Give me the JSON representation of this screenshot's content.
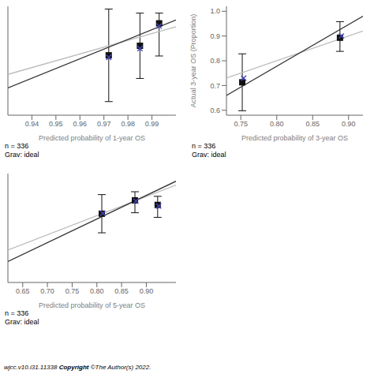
{
  "chart_data": [
    {
      "type": "scatter",
      "xlabel": "Predicted probability of 1-year OS",
      "xlim": [
        0.93,
        1.0
      ],
      "ylim": [
        0.87,
        1.03
      ],
      "xticks": [
        0.94,
        0.95,
        0.96,
        0.97,
        0.98,
        0.99
      ],
      "tick_labels": "x",
      "grid": false,
      "annotations": [
        "n = 336\nGrav: ideal"
      ],
      "series": [
        {
          "type": "line",
          "color": "#bbbbbb",
          "x": [
            0.93,
            1.0
          ],
          "values": [
            0.93,
            1.0
          ]
        },
        {
          "type": "line",
          "color": "#333333",
          "x": [
            0.93,
            1.0
          ],
          "values": [
            0.91,
            1.01
          ]
        },
        {
          "type": "scatter",
          "marker": "square",
          "color": "#111111",
          "x": [
            0.972,
            0.985,
            0.993
          ],
          "values": [
            0.958,
            0.972,
            1.005
          ],
          "error_low": [
            0.068,
            0.048,
            0.048
          ],
          "error_high": [
            0.068,
            0.048,
            0.015
          ]
        },
        {
          "type": "scatter",
          "marker": "x",
          "color": "#4444bb",
          "x": [
            0.972,
            0.985,
            0.993
          ],
          "values": [
            0.955,
            0.968,
            1.001
          ]
        }
      ]
    },
    {
      "type": "scatter",
      "xlabel": "Predicted probability of 3-year OS",
      "ylabel": "Actual 3-year OS (Proportion)",
      "xlim": [
        0.73,
        0.92
      ],
      "ylim": [
        0.58,
        1.02
      ],
      "xticks": [
        0.75,
        {
          "value": 0.8,
          "label": "0.80"
        },
        0.85,
        {
          "value": 0.9,
          "label": "0.90"
        }
      ],
      "yticks": [
        0.6,
        0.7,
        0.8,
        0.9,
        {
          "value": 1.0,
          "label": "1.0"
        }
      ],
      "grid": false,
      "annotations": [
        "n = 336\nGrav: ideal"
      ],
      "series": [
        {
          "type": "line",
          "color": "#bbbbbb",
          "x": [
            0.73,
            0.92
          ],
          "values": [
            0.73,
            0.92
          ]
        },
        {
          "type": "line",
          "color": "#333333",
          "x": [
            0.73,
            0.92
          ],
          "values": [
            0.66,
            0.98
          ]
        },
        {
          "type": "scatter",
          "marker": "square",
          "color": "#111111",
          "x": [
            0.752,
            0.888
          ],
          "values": [
            0.713,
            0.893
          ],
          "error_low": [
            0.115,
            0.055
          ],
          "error_high": [
            0.115,
            0.065
          ]
        },
        {
          "type": "scatter",
          "marker": "x",
          "color": "#4444bb",
          "x": [
            0.754,
            0.89
          ],
          "values": [
            0.73,
            0.9
          ]
        }
      ]
    },
    {
      "type": "scatter",
      "xlabel": "Predicted probability of 5-year OS",
      "xlim": [
        0.62,
        0.96
      ],
      "ylim": [
        0.45,
        1.02
      ],
      "xticks": [
        0.65,
        {
          "value": 0.7,
          "label": "0.70"
        },
        0.75,
        {
          "value": 0.8,
          "label": "0.80"
        },
        0.85,
        {
          "value": 0.9,
          "label": "0.90"
        }
      ],
      "tick_labels": "x",
      "grid": false,
      "annotations": [
        "n = 336\nGrav: ideal"
      ],
      "series": [
        {
          "type": "line",
          "color": "#bbbbbb",
          "x": [
            0.62,
            0.96
          ],
          "values": [
            0.62,
            0.96
          ]
        },
        {
          "type": "line",
          "color": "#333333",
          "x": [
            0.62,
            0.96
          ],
          "values": [
            0.56,
            0.98
          ]
        },
        {
          "type": "scatter",
          "marker": "square",
          "color": "#111111",
          "x": [
            0.81,
            0.877,
            0.923
          ],
          "values": [
            0.81,
            0.88,
            0.856
          ],
          "error_low": [
            0.1,
            0.065,
            0.065
          ],
          "error_high": [
            0.1,
            0.045,
            0.045
          ]
        },
        {
          "type": "scatter",
          "marker": "x",
          "color": "#4444bb",
          "x": [
            0.812,
            0.879,
            0.925
          ],
          "values": [
            0.812,
            0.876,
            0.85
          ]
        }
      ]
    }
  ],
  "footnote": [
    "wjcc.v10.i31.11338 ",
    "Copyright",
    " ©The Author(s) 2022."
  ]
}
